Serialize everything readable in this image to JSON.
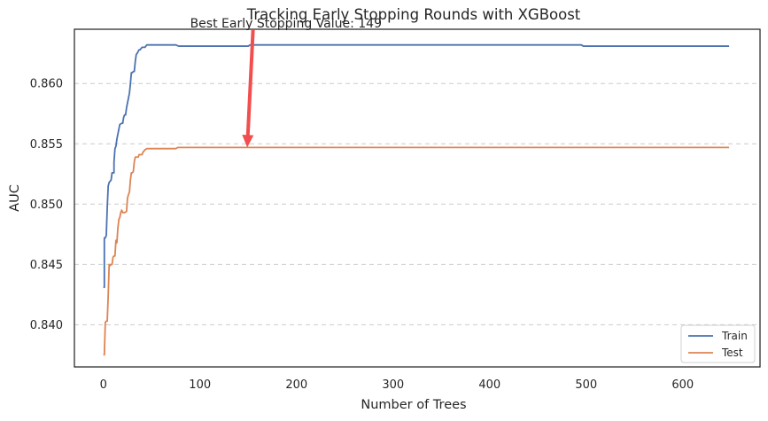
{
  "colors": {
    "train": "#4c72b0",
    "test": "#dd8452",
    "arrow": "#f24e4e",
    "grid": "#cccccc",
    "frame": "#262626"
  },
  "chart_data": {
    "type": "line",
    "title": "Tracking Early Stopping Rounds with XGBoost",
    "xlabel": "Number of Trees",
    "ylabel": "AUC",
    "xlim": [
      -30,
      680
    ],
    "ylim": [
      0.8365,
      0.8645
    ],
    "xticks": [
      0,
      100,
      200,
      300,
      400,
      500,
      600
    ],
    "xtick_labels": [
      "0",
      "100",
      "200",
      "300",
      "400",
      "500",
      "600"
    ],
    "yticks": [
      0.84,
      0.845,
      0.85,
      0.855,
      0.86
    ],
    "ytick_labels": [
      "0.840",
      "0.845",
      "0.850",
      "0.855",
      "0.860"
    ],
    "grid": "horizontal dashed",
    "legend_position": "bottom-right",
    "annotation": {
      "text": "Best Early Stopping Value: 149",
      "x": 149,
      "y": 0.8547,
      "text_x": 154,
      "text_y": 0.8652,
      "arrow_color": "#f24e4e"
    },
    "series": [
      {
        "name": "Train",
        "color": "#4c72b0",
        "points": [
          [
            0,
            0.8431
          ],
          [
            1,
            0.8431
          ],
          [
            1,
            0.8472
          ],
          [
            2,
            0.8472
          ],
          [
            3,
            0.8474
          ],
          [
            4,
            0.8497
          ],
          [
            5,
            0.8515
          ],
          [
            6,
            0.8518
          ],
          [
            8,
            0.852
          ],
          [
            9,
            0.8526
          ],
          [
            11,
            0.8526
          ],
          [
            11,
            0.8535
          ],
          [
            12,
            0.8546
          ],
          [
            13,
            0.8548
          ],
          [
            14,
            0.8554
          ],
          [
            16,
            0.8562
          ],
          [
            17,
            0.8566
          ],
          [
            19,
            0.8567
          ],
          [
            20,
            0.8567
          ],
          [
            21,
            0.8572
          ],
          [
            22,
            0.8574
          ],
          [
            23,
            0.8574
          ],
          [
            24,
            0.858
          ],
          [
            26,
            0.8588
          ],
          [
            27,
            0.8592
          ],
          [
            28,
            0.86
          ],
          [
            29,
            0.8609
          ],
          [
            30,
            0.8609
          ],
          [
            31,
            0.861
          ],
          [
            32,
            0.861
          ],
          [
            33,
            0.8618
          ],
          [
            34,
            0.8624
          ],
          [
            35,
            0.8625
          ],
          [
            37,
            0.8628
          ],
          [
            38,
            0.8628
          ],
          [
            40,
            0.863
          ],
          [
            43,
            0.863
          ],
          [
            45,
            0.8632
          ],
          [
            75,
            0.8632
          ],
          [
            78,
            0.8631
          ],
          [
            150,
            0.8631
          ],
          [
            152,
            0.8632
          ],
          [
            495,
            0.8632
          ],
          [
            497,
            0.8631
          ],
          [
            648,
            0.8631
          ]
        ]
      },
      {
        "name": "Test",
        "color": "#dd8452",
        "points": [
          [
            0,
            0.8375
          ],
          [
            1,
            0.8375
          ],
          [
            2,
            0.8402
          ],
          [
            3,
            0.8403
          ],
          [
            4,
            0.8403
          ],
          [
            5,
            0.8424
          ],
          [
            6,
            0.845
          ],
          [
            7,
            0.8449
          ],
          [
            8,
            0.845
          ],
          [
            9,
            0.845
          ],
          [
            10,
            0.8456
          ],
          [
            11,
            0.8457
          ],
          [
            12,
            0.8457
          ],
          [
            13,
            0.847
          ],
          [
            14,
            0.8468
          ],
          [
            15,
            0.848
          ],
          [
            16,
            0.8487
          ],
          [
            17,
            0.8489
          ],
          [
            18,
            0.8493
          ],
          [
            19,
            0.8495
          ],
          [
            20,
            0.8493
          ],
          [
            22,
            0.8493
          ],
          [
            24,
            0.8494
          ],
          [
            25,
            0.8505
          ],
          [
            26,
            0.8508
          ],
          [
            27,
            0.851
          ],
          [
            28,
            0.852
          ],
          [
            29,
            0.8526
          ],
          [
            30,
            0.8526
          ],
          [
            31,
            0.8527
          ],
          [
            32,
            0.8535
          ],
          [
            33,
            0.8539
          ],
          [
            36,
            0.8539
          ],
          [
            37,
            0.8541
          ],
          [
            40,
            0.8541
          ],
          [
            41,
            0.8543
          ],
          [
            43,
            0.8545
          ],
          [
            45,
            0.8546
          ],
          [
            75,
            0.8546
          ],
          [
            77,
            0.8547
          ],
          [
            648,
            0.8547
          ]
        ]
      }
    ]
  }
}
